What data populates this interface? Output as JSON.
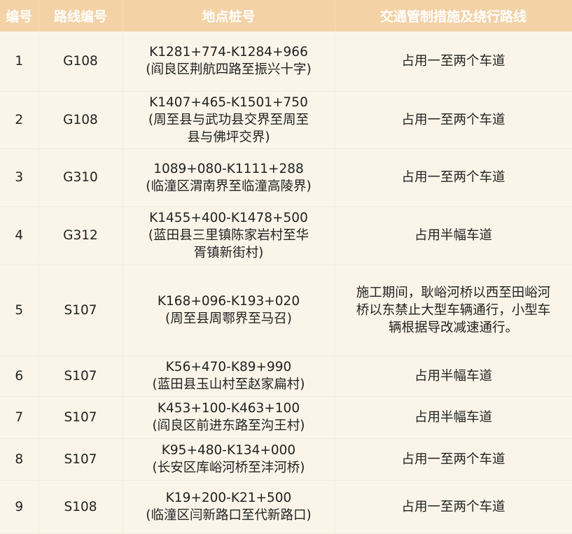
{
  "colors": {
    "header_bg": "#f3d2a6",
    "header_text": "#ffffff",
    "row_bg": "#fbf5e9"
  },
  "table": {
    "headers": [
      "编号",
      "路线编号",
      "地点桩号",
      "交通管制措施及绕行路线"
    ],
    "rows": [
      {
        "no": "1",
        "route": "G108",
        "location": "K1281+774-K1284+966\n(阎良区荆航四路至振兴十字)",
        "measure": "占用一至两个车道"
      },
      {
        "no": "2",
        "route": "G108",
        "location": "K1407+465-K1501+750\n(周至县与武功县交界至周至\n县与佛坪交界)",
        "measure": "占用一至两个车道"
      },
      {
        "no": "3",
        "route": "G310",
        "location": "1089+080-K1111+288\n(临潼区渭南界至临潼高陵界)",
        "measure": "占用一至两个车道"
      },
      {
        "no": "4",
        "route": "G312",
        "location": "K1455+400-K1478+500\n(蓝田县三里镇陈家岩村至华\n胥镇新街村)",
        "measure": "占用半幅车道"
      },
      {
        "no": "5",
        "route": "S107",
        "location": "K168+096-K193+020\n(周至县周鄠界至马召)",
        "measure": "施工期间，耿峪河桥以西至田峪河\n桥以东禁止大型车辆通行，小型车\n辆根据导改减速通行。"
      },
      {
        "no": "6",
        "route": "S107",
        "location": "K56+470-K89+990\n(蓝田县玉山村至赵家扁村)",
        "measure": "占用半幅车道"
      },
      {
        "no": "7",
        "route": "S107",
        "location": "K453+100-K463+100\n(阎良区前进东路至沟王村)",
        "measure": "占用半幅车道"
      },
      {
        "no": "8",
        "route": "S107",
        "location": "K95+480-K134+000\n(长安区库峪河桥至沣河桥)",
        "measure": "占用一至两个车道"
      },
      {
        "no": "9",
        "route": "S108",
        "location": "K19+200-K21+500\n(临潼区闫新路口至代新路口)",
        "measure": "占用一至两个车道"
      }
    ]
  }
}
